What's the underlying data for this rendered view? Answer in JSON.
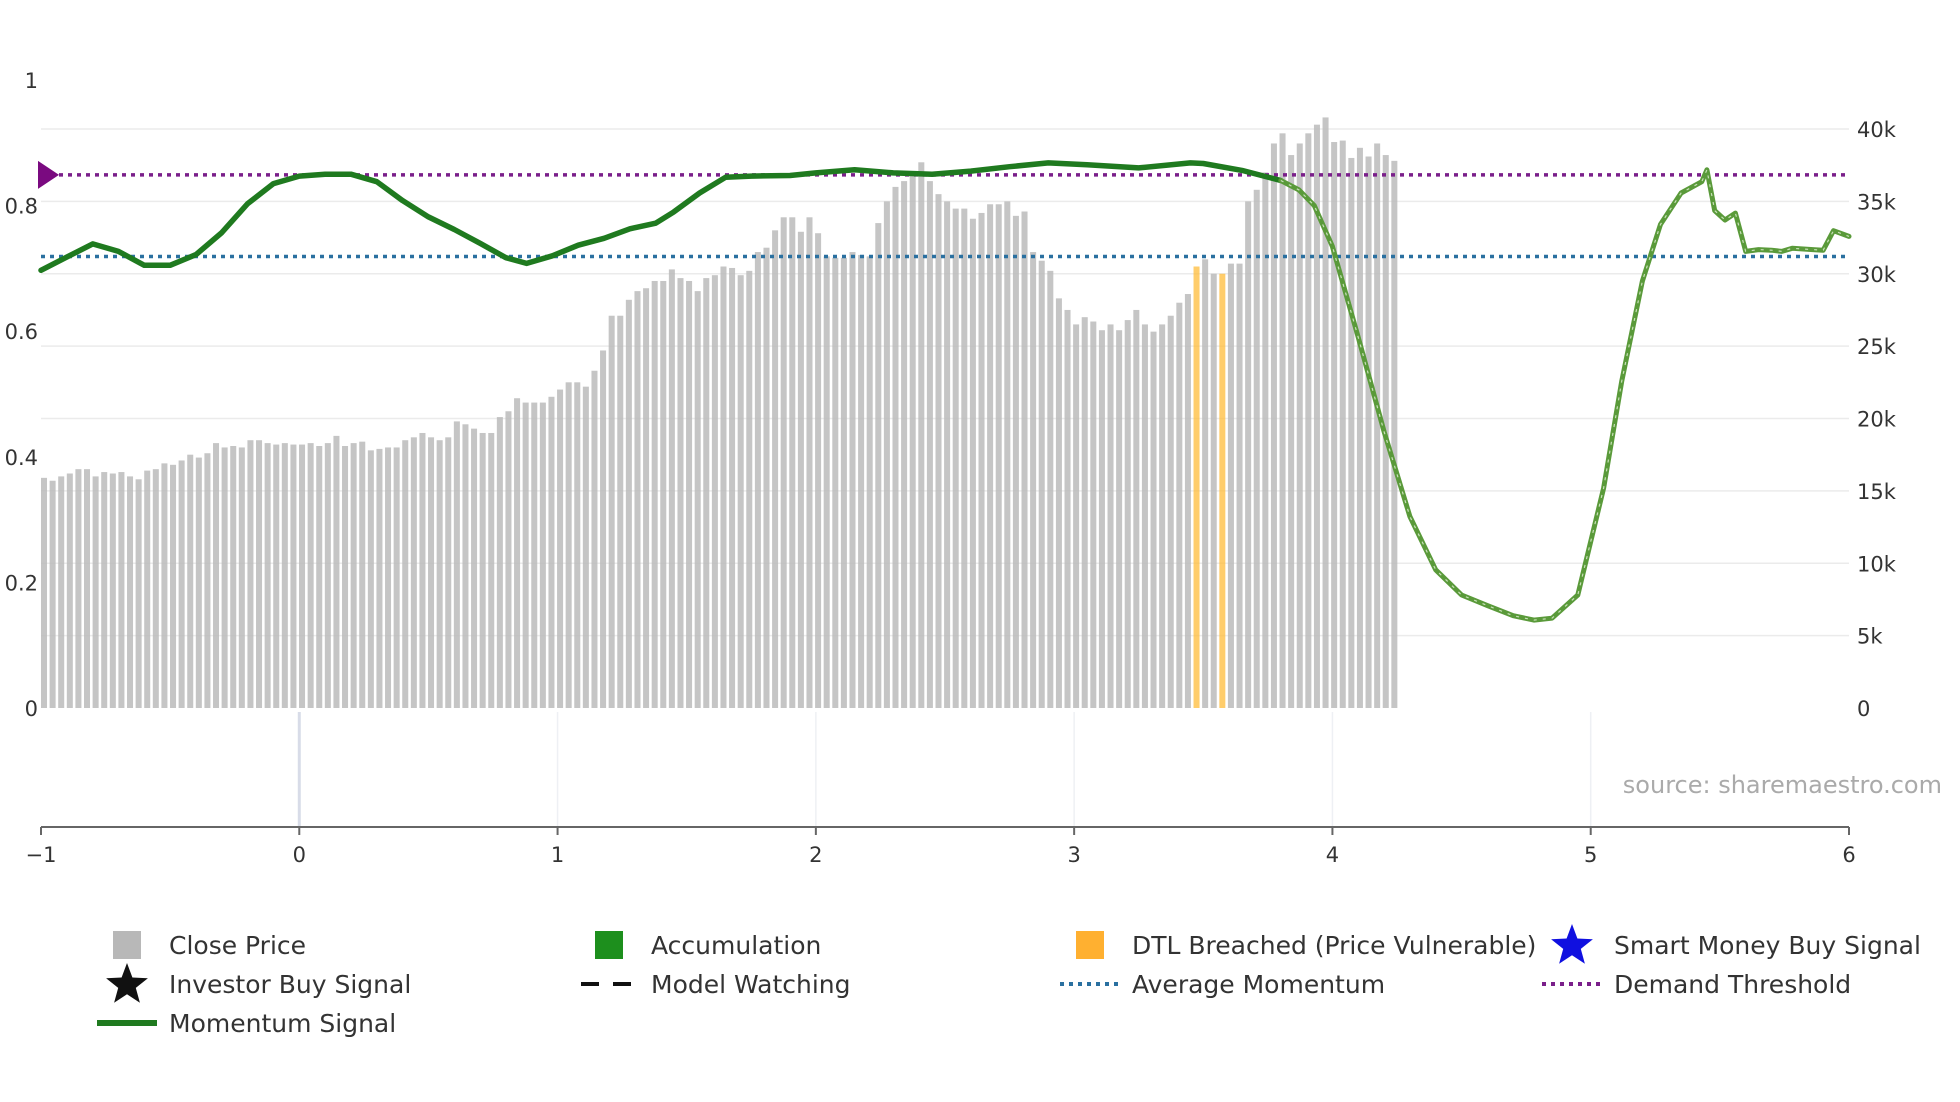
{
  "chart_data": {
    "type": "bar+line",
    "title": "",
    "source_text": "source: sharemaestro.com",
    "x_axis": {
      "range": [
        -1,
        6
      ],
      "ticks": [
        {
          "v": -1,
          "label": "−1"
        },
        {
          "v": 0,
          "label": "0"
        },
        {
          "v": 1,
          "label": "1"
        },
        {
          "v": 2,
          "label": "2"
        },
        {
          "v": 3,
          "label": "3"
        },
        {
          "v": 4,
          "label": "4"
        },
        {
          "v": 5,
          "label": "5"
        },
        {
          "v": 6,
          "label": "6"
        }
      ]
    },
    "y_left": {
      "range": [
        0,
        1
      ],
      "ticks": [
        {
          "v": 0,
          "label": "0"
        },
        {
          "v": 0.2,
          "label": "0.2"
        },
        {
          "v": 0.4,
          "label": "0.4"
        },
        {
          "v": 0.6,
          "label": "0.6"
        },
        {
          "v": 0.8,
          "label": "0.8"
        },
        {
          "v": 1,
          "label": "1"
        }
      ]
    },
    "y_right": {
      "range": [
        0,
        40000
      ],
      "ticks": [
        {
          "v": 0,
          "label": "0"
        },
        {
          "v": 5000,
          "label": "5k"
        },
        {
          "v": 10000,
          "label": "10k"
        },
        {
          "v": 15000,
          "label": "15k"
        },
        {
          "v": 20000,
          "label": "20k"
        },
        {
          "v": 25000,
          "label": "25k"
        },
        {
          "v": 30000,
          "label": "30k"
        },
        {
          "v": 35000,
          "label": "35k"
        },
        {
          "v": 40000,
          "label": "40k"
        }
      ]
    },
    "close_price": {
      "x_start": -1,
      "x_step": 0.0333,
      "orange_from_index": 192,
      "orange_indices": [
        134,
        137
      ],
      "values": [
        15900,
        15700,
        16000,
        16200,
        16500,
        16500,
        16000,
        16300,
        16200,
        16300,
        16000,
        15800,
        16400,
        16500,
        16900,
        16800,
        17100,
        17500,
        17300,
        17600,
        18300,
        18000,
        18100,
        18000,
        18500,
        18500,
        18300,
        18200,
        18300,
        18200,
        18200,
        18300,
        18100,
        18300,
        18800,
        18100,
        18300,
        18400,
        17800,
        17900,
        18000,
        18000,
        18500,
        18700,
        19000,
        18700,
        18500,
        18700,
        19800,
        19600,
        19300,
        19000,
        19000,
        20100,
        20500,
        21400,
        21100,
        21100,
        21100,
        21500,
        22000,
        22500,
        22500,
        22200,
        23300,
        24700,
        27100,
        27100,
        28200,
        28800,
        29000,
        29500,
        29500,
        30300,
        29700,
        29500,
        28800,
        29700,
        29900,
        30500,
        30400,
        29900,
        30200,
        31500,
        31800,
        33000,
        33900,
        33900,
        32900,
        33900,
        32800,
        31200,
        31100,
        31100,
        31500,
        31300,
        31200,
        33500,
        35000,
        36000,
        36400,
        37100,
        37700,
        36400,
        35500,
        35000,
        34500,
        34500,
        33800,
        34200,
        34800,
        34800,
        35000,
        34000,
        34300,
        31500,
        30900,
        30200,
        28300,
        27500,
        26500,
        27000,
        26700,
        26100,
        26500,
        26100,
        26800,
        27500,
        26500,
        26000,
        26500,
        27100,
        28000,
        28600,
        30500,
        31000,
        30000,
        30000,
        30700,
        30700,
        35000,
        35800,
        37000,
        39000,
        39700,
        38200,
        39000,
        39700,
        40300,
        40800,
        39100,
        39200,
        38000,
        38700,
        38100,
        39000,
        38200,
        37800
      ]
    },
    "momentum_signal": {
      "points": [
        [
          -1.0,
          0.697
        ],
        [
          -0.9,
          0.718
        ],
        [
          -0.8,
          0.739
        ],
        [
          -0.7,
          0.727
        ],
        [
          -0.6,
          0.705
        ],
        [
          -0.5,
          0.705
        ],
        [
          -0.4,
          0.722
        ],
        [
          -0.3,
          0.757
        ],
        [
          -0.2,
          0.803
        ],
        [
          -0.1,
          0.835
        ],
        [
          0.0,
          0.847
        ],
        [
          0.1,
          0.85
        ],
        [
          0.2,
          0.85
        ],
        [
          0.3,
          0.838
        ],
        [
          0.4,
          0.808
        ],
        [
          0.5,
          0.782
        ],
        [
          0.6,
          0.762
        ],
        [
          0.7,
          0.74
        ],
        [
          0.8,
          0.717
        ],
        [
          0.88,
          0.708
        ],
        [
          0.98,
          0.72
        ],
        [
          1.08,
          0.737
        ],
        [
          1.18,
          0.748
        ],
        [
          1.28,
          0.763
        ],
        [
          1.38,
          0.772
        ],
        [
          1.45,
          0.79
        ],
        [
          1.55,
          0.82
        ],
        [
          1.65,
          0.845
        ],
        [
          1.75,
          0.847
        ],
        [
          1.9,
          0.848
        ],
        [
          2.0,
          0.852
        ],
        [
          2.15,
          0.857
        ],
        [
          2.3,
          0.852
        ],
        [
          2.45,
          0.85
        ],
        [
          2.6,
          0.855
        ],
        [
          2.75,
          0.862
        ],
        [
          2.9,
          0.868
        ],
        [
          3.05,
          0.865
        ],
        [
          3.25,
          0.86
        ],
        [
          3.45,
          0.868
        ],
        [
          3.5,
          0.867
        ],
        [
          3.65,
          0.856
        ],
        [
          3.8,
          0.84
        ],
        [
          3.87,
          0.825
        ],
        [
          3.93,
          0.8
        ],
        [
          4.0,
          0.735
        ],
        [
          4.1,
          0.59
        ],
        [
          4.2,
          0.44
        ],
        [
          4.3,
          0.305
        ],
        [
          4.4,
          0.22
        ],
        [
          4.5,
          0.18
        ],
        [
          4.6,
          0.163
        ],
        [
          4.7,
          0.147
        ],
        [
          4.78,
          0.14
        ],
        [
          4.85,
          0.143
        ],
        [
          4.95,
          0.18
        ],
        [
          5.05,
          0.35
        ],
        [
          5.12,
          0.52
        ],
        [
          5.2,
          0.68
        ],
        [
          5.27,
          0.77
        ],
        [
          5.35,
          0.82
        ],
        [
          5.43,
          0.838
        ],
        [
          5.45,
          0.857
        ],
        [
          5.48,
          0.792
        ],
        [
          5.52,
          0.777
        ],
        [
          5.56,
          0.788
        ],
        [
          5.6,
          0.727
        ],
        [
          5.65,
          0.73
        ],
        [
          5.7,
          0.729
        ],
        [
          5.74,
          0.727
        ],
        [
          5.78,
          0.732
        ],
        [
          5.86,
          0.73
        ],
        [
          5.9,
          0.729
        ],
        [
          5.94,
          0.76
        ],
        [
          6.0,
          0.751
        ]
      ],
      "faded_from_x": 3.85
    },
    "average_momentum": 0.719,
    "demand_threshold": 0.849,
    "colors": {
      "close_price": "#bbbbbb",
      "dtl_breached": "#ffbc3a",
      "momentum": "#1f7a1f",
      "momentum_faded": "#5a9a3a",
      "average": "#2a70a0",
      "threshold": "#7a1f8a",
      "marker": "#7a0a80"
    },
    "legend": [
      {
        "key": "close-price",
        "label": "Close Price",
        "symbol": "square",
        "color": "#b8b8b8"
      },
      {
        "key": "accumulation",
        "label": "Accumulation",
        "symbol": "square",
        "color": "#1d8f1d"
      },
      {
        "key": "dtl-breached",
        "label": "DTL Breached (Price Vulnerable)",
        "symbol": "square",
        "color": "#ffb030"
      },
      {
        "key": "smart-money-buy-signal",
        "label": "Smart Money Buy Signal",
        "symbol": "star",
        "color": "#1010e0"
      },
      {
        "key": "investor-buy-signal",
        "label": "Investor Buy Signal",
        "symbol": "star",
        "color": "#111111"
      },
      {
        "key": "model-watching",
        "label": "Model Watching",
        "symbol": "dash",
        "color": "#111111"
      },
      {
        "key": "average-momentum",
        "label": "Average Momentum",
        "symbol": "dot",
        "color": "#2a70a0"
      },
      {
        "key": "demand-threshold",
        "label": "Demand Threshold",
        "symbol": "dot",
        "color": "#7a1f8a"
      },
      {
        "key": "momentum-signal",
        "label": "Momentum Signal",
        "symbol": "line",
        "color": "#1f7a1f"
      }
    ]
  }
}
